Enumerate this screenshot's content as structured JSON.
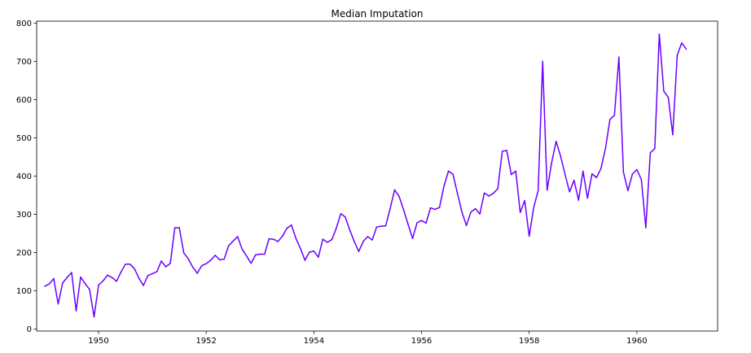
{
  "chart_data": {
    "type": "line",
    "title": "Median Imputation",
    "xlabel": "",
    "ylabel": "",
    "xlim": [
      1948.85,
      1961.5
    ],
    "ylim": [
      -5,
      805
    ],
    "x_ticks": [
      1950,
      1952,
      1954,
      1956,
      1958,
      1960
    ],
    "x_tick_labels": [
      "1950",
      "1952",
      "1954",
      "1956",
      "1958",
      "1960"
    ],
    "y_ticks": [
      0,
      100,
      200,
      300,
      400,
      500,
      600,
      700,
      800
    ],
    "y_tick_labels": [
      "0",
      "100",
      "200",
      "300",
      "400",
      "500",
      "600",
      "700",
      "800"
    ],
    "grid": false,
    "legend": "none",
    "line_color": "#6a00ff",
    "x": [
      "1949-01",
      "1949-02",
      "1949-03",
      "1949-04",
      "1949-05",
      "1949-06",
      "1949-07",
      "1949-08",
      "1949-09",
      "1949-10",
      "1949-11",
      "1949-12",
      "1950-01",
      "1950-02",
      "1950-03",
      "1950-04",
      "1950-05",
      "1950-06",
      "1950-07",
      "1950-08",
      "1950-09",
      "1950-10",
      "1950-11",
      "1950-12",
      "1951-01",
      "1951-02",
      "1951-03",
      "1951-04",
      "1951-05",
      "1951-06",
      "1951-07",
      "1951-08",
      "1951-09",
      "1951-10",
      "1951-11",
      "1951-12",
      "1952-01",
      "1952-02",
      "1952-03",
      "1952-04",
      "1952-05",
      "1952-06",
      "1952-07",
      "1952-08",
      "1952-09",
      "1952-10",
      "1952-11",
      "1952-12",
      "1953-01",
      "1953-02",
      "1953-03",
      "1953-04",
      "1953-05",
      "1953-06",
      "1953-07",
      "1953-08",
      "1953-09",
      "1953-10",
      "1953-11",
      "1953-12",
      "1954-01",
      "1954-02",
      "1954-03",
      "1954-04",
      "1954-05",
      "1954-06",
      "1954-07",
      "1954-08",
      "1954-09",
      "1954-10",
      "1954-11",
      "1954-12",
      "1955-01",
      "1955-02",
      "1955-03",
      "1955-04",
      "1955-05",
      "1955-06",
      "1955-07",
      "1955-08",
      "1955-09",
      "1955-10",
      "1955-11",
      "1955-12",
      "1956-01",
      "1956-02",
      "1956-03",
      "1956-04",
      "1956-05",
      "1956-06",
      "1956-07",
      "1956-08",
      "1956-09",
      "1956-10",
      "1956-11",
      "1956-12",
      "1957-01",
      "1957-02",
      "1957-03",
      "1957-04",
      "1957-05",
      "1957-06",
      "1957-07",
      "1957-08",
      "1957-09",
      "1957-10",
      "1957-11",
      "1957-12",
      "1958-01",
      "1958-02",
      "1958-03",
      "1958-04",
      "1958-05",
      "1958-06",
      "1958-07",
      "1958-08",
      "1958-09",
      "1958-10",
      "1958-11",
      "1958-12",
      "1959-01",
      "1959-02",
      "1959-03",
      "1959-04",
      "1959-05",
      "1959-06",
      "1959-07",
      "1959-08",
      "1959-09",
      "1959-10",
      "1959-11",
      "1959-12",
      "1960-01",
      "1960-02",
      "1960-03",
      "1960-04",
      "1960-05",
      "1960-06",
      "1960-07",
      "1960-08",
      "1960-09",
      "1960-10",
      "1960-11",
      "1960-12"
    ],
    "series": [
      {
        "values": [
          112,
          118,
          132,
          66,
          121,
          135,
          148,
          48,
          136,
          119,
          104,
          32,
          115,
          126,
          141,
          135,
          125,
          149,
          170,
          170,
          158,
          133,
          114,
          140,
          145,
          150,
          178,
          163,
          172,
          265,
          265,
          199,
          184,
          162,
          146,
          166,
          171,
          180,
          193,
          181,
          183,
          218,
          230,
          242,
          209,
          191,
          172,
          194,
          196,
          196,
          236,
          235,
          229,
          243,
          264,
          272,
          237,
          211,
          180,
          201,
          204,
          188,
          235,
          227,
          234,
          264,
          302,
          293,
          259,
          229,
          203,
          229,
          242,
          233,
          267,
          269,
          270,
          315,
          364,
          347,
          312,
          274,
          237,
          278,
          284,
          277,
          317,
          313,
          318,
          374,
          413,
          405,
          355,
          306,
          271,
          306,
          315,
          301,
          356,
          348,
          355,
          367,
          465,
          467,
          404,
          413,
          305,
          336,
          243,
          318,
          362,
          700,
          363,
          435,
          491,
          452,
          404,
          359,
          389,
          337,
          413,
          342,
          406,
          396,
          420,
          472,
          548,
          559,
          711,
          411,
          362,
          405,
          417,
          391,
          265,
          461,
          472,
          771,
          622,
          606,
          508,
          716,
          748,
          732
        ]
      }
    ]
  }
}
